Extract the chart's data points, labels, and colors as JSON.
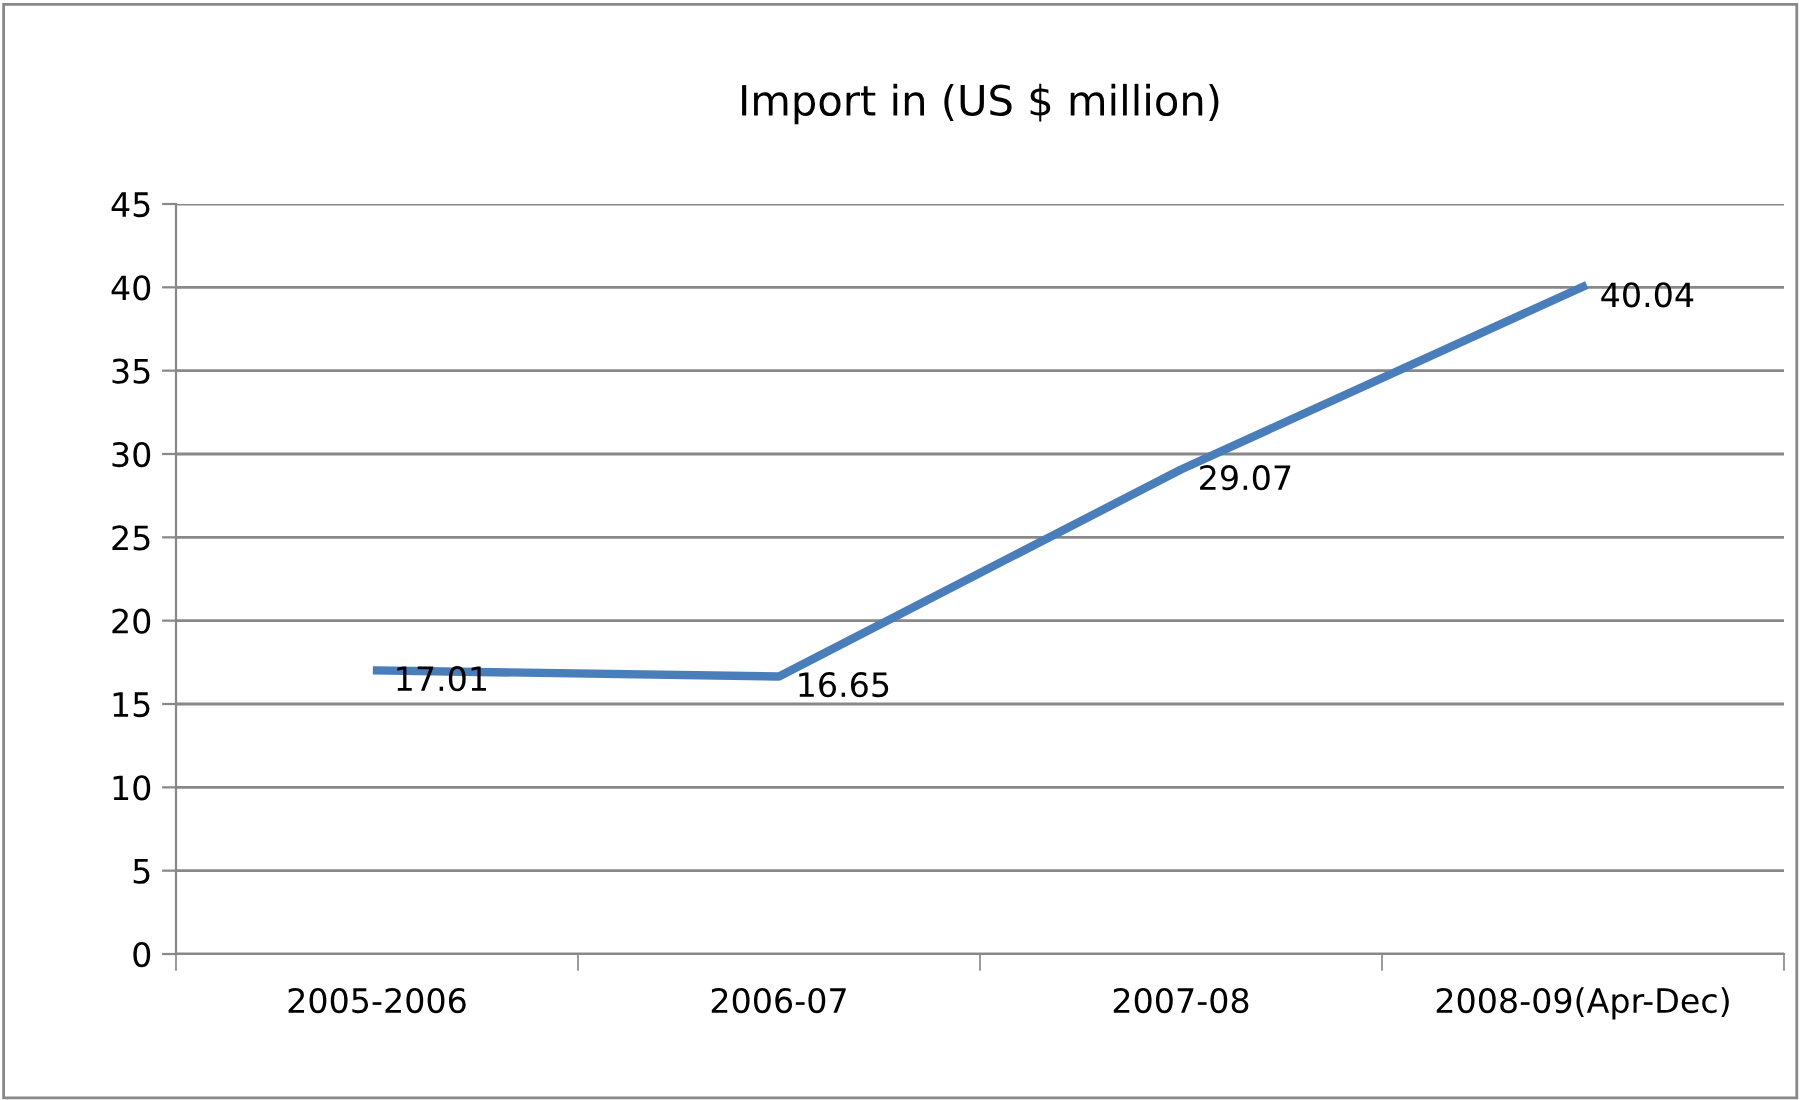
{
  "chart_data": {
    "type": "line",
    "title": "Import in (US $ million)",
    "categories": [
      "2005-2006",
      "2006-07",
      "2007-08",
      "2008-09(Apr-Dec)"
    ],
    "series": [
      {
        "color": "#4a7ebb",
        "values": [
          17.01,
          16.65,
          29.07,
          40.04
        ]
      }
    ],
    "ylim": [
      0,
      45
    ],
    "yticks": [
      0,
      5,
      10,
      15,
      20,
      25,
      30,
      35,
      40,
      45
    ],
    "grid": "y",
    "data_labels": true,
    "marker": "none",
    "line_style": "solid"
  }
}
